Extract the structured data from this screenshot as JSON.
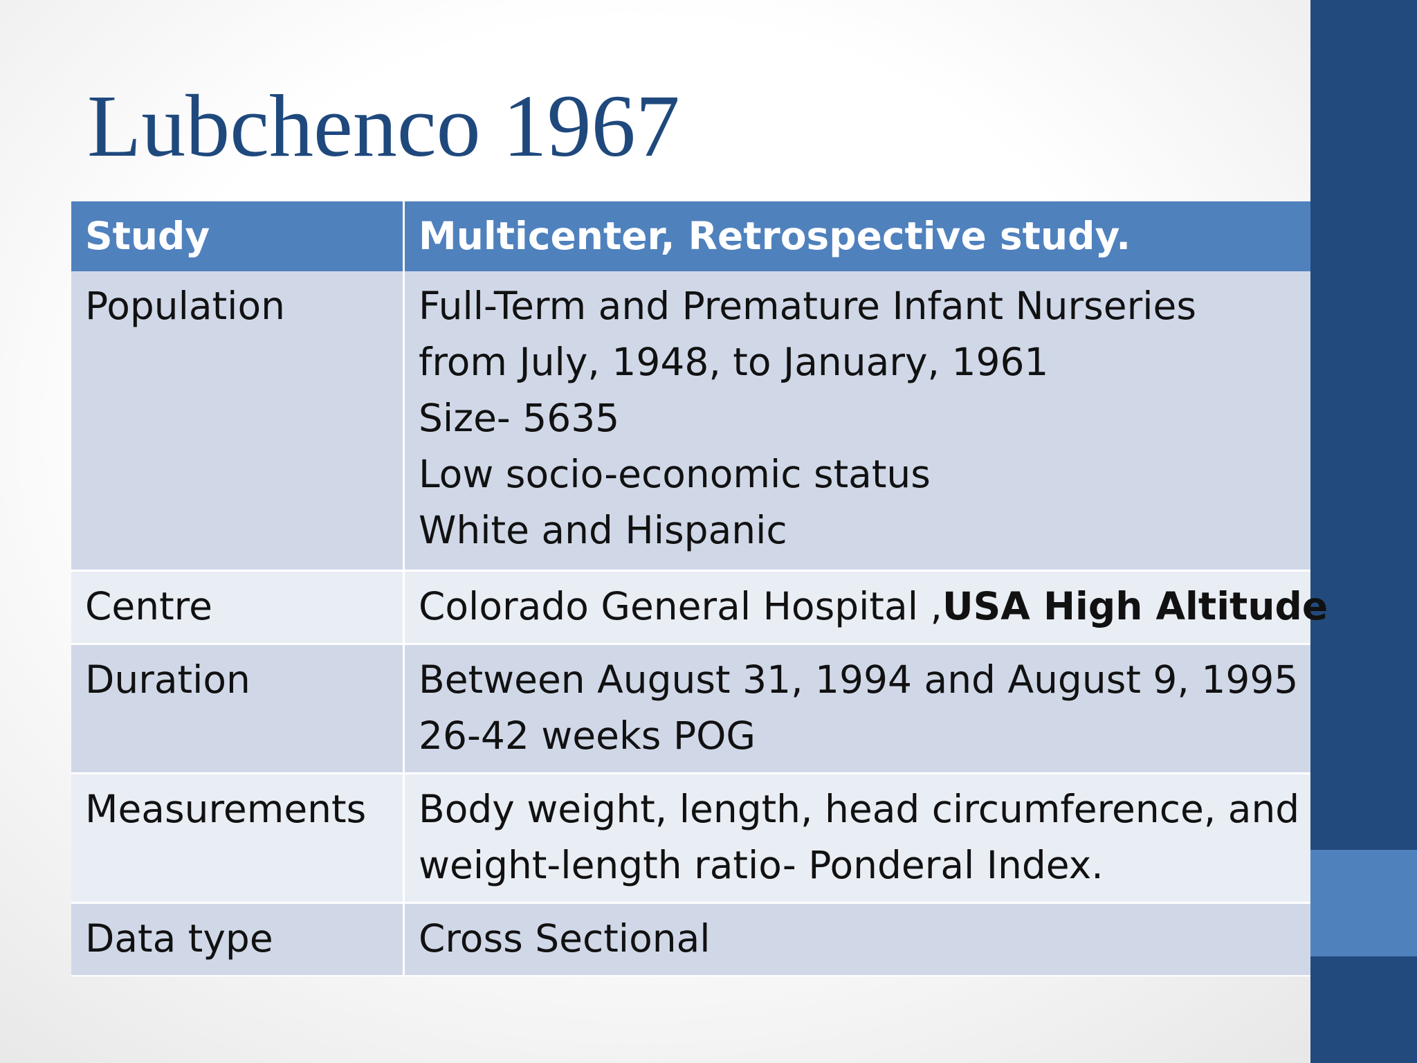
{
  "title": "Lubchenco 1967",
  "table": {
    "header": [
      "Study",
      "Multicenter, Retrospective study."
    ],
    "rows": [
      {
        "label": "Population",
        "lines": [
          "Full-Term and Premature Infant Nurseries",
          "from July, 1948, to January, 1961",
          "Size- 5635",
          "Low socio-economic status",
          "White and Hispanic"
        ]
      },
      {
        "label": "Centre",
        "lines": [
          "Colorado General Hospital ,"
        ],
        "emphasis": "USA High Altitude"
      },
      {
        "label": "Duration",
        "lines": [
          "Between August 31, 1994 and August 9, 1995",
          "26-42 weeks POG"
        ]
      },
      {
        "label": "Measurements",
        "lines": [
          "Body weight, length, head circumference, and",
          "weight-length ratio- Ponderal Index."
        ]
      },
      {
        "label": "Data type",
        "lines": [
          "Cross Sectional"
        ]
      }
    ]
  }
}
